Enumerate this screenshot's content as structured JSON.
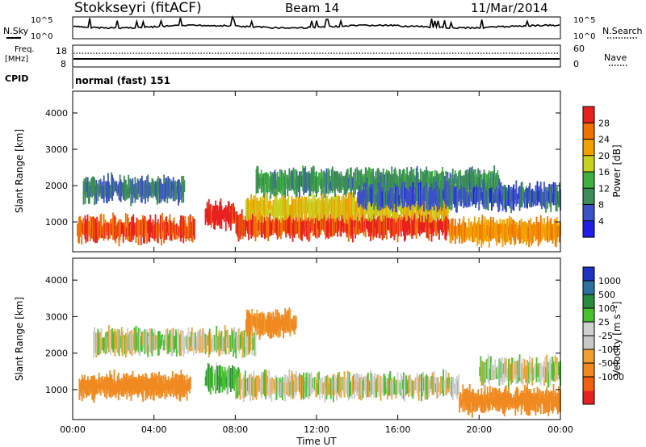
{
  "header": {
    "station": "Stokkseyri (fitACF)",
    "beam": "Beam 14",
    "date": "11/Mar/2014"
  },
  "noise_panel": {
    "left_label": "N.Sky",
    "right_label": "N.Search",
    "ticks_left": [
      "10^5",
      "10^0"
    ],
    "ticks_right": [
      "10^5",
      "10^0"
    ]
  },
  "freq_panel": {
    "left_label_line1": "Freq.",
    "left_label_line2": "[MHz]",
    "right_label": "Nave",
    "ticks_left": [
      "18",
      "8"
    ],
    "ticks_right": [
      "60",
      "0"
    ]
  },
  "cpid_panel": {
    "label": "CPID",
    "mode": "normal (fast) 151"
  },
  "colors": {
    "power_scale": [
      "#1e1ee6",
      "#3c50c8",
      "#3c8c5a",
      "#3fb040",
      "#c8d020",
      "#f0a000",
      "#f07000",
      "#e82020"
    ],
    "velocity_scale": [
      "#e82020",
      "#f06010",
      "#f08a20",
      "#f0a030",
      "#c8c8c8",
      "#d0d0d0",
      "#48c030",
      "#2a8a40",
      "#3070a0",
      "#2030c0"
    ],
    "noise_trace": "#000000"
  },
  "chart_data": [
    {
      "type": "heatmap",
      "title": "",
      "panel": "power",
      "xlabel": "",
      "ylabel": "Slant Range [km]",
      "x_ticks": [
        "00:00",
        "04:00",
        "08:00",
        "12:00",
        "16:00",
        "20:00",
        "00:00"
      ],
      "x_range_hours": [
        0,
        24
      ],
      "ylim": [
        180,
        4600
      ],
      "y_ticks": [
        1000,
        2000,
        3000,
        4000
      ],
      "colorbar": {
        "label": "Power [dB]",
        "ticks": [
          "4",
          "8",
          "12",
          "16",
          "20",
          "24",
          "28"
        ],
        "range": [
          0,
          30
        ]
      },
      "features": [
        {
          "t_start": 0.2,
          "t_end": 6.0,
          "range_center": 800,
          "value": 26
        },
        {
          "t_start": 0.5,
          "t_end": 5.5,
          "range_center": 1900,
          "value": 8
        },
        {
          "t_start": 6.5,
          "t_end": 8.0,
          "range_center": 1200,
          "value": 29
        },
        {
          "t_start": 8.0,
          "t_end": 18.5,
          "range_center": 900,
          "value": 27
        },
        {
          "t_start": 8.5,
          "t_end": 18.5,
          "range_center": 1400,
          "value": 18
        },
        {
          "t_start": 9.0,
          "t_end": 21.0,
          "range_center": 2100,
          "value": 10
        },
        {
          "t_start": 18.5,
          "t_end": 24.0,
          "range_center": 750,
          "value": 22
        },
        {
          "t_start": 14.0,
          "t_end": 24.0,
          "range_center": 1700,
          "value": 6
        }
      ]
    },
    {
      "type": "heatmap",
      "title": "",
      "panel": "velocity",
      "xlabel": "Time UT",
      "ylabel": "Slant Range [km]",
      "x_ticks": [
        "00:00",
        "04:00",
        "08:00",
        "12:00",
        "16:00",
        "20:00",
        "00:00"
      ],
      "x_range_hours": [
        0,
        24
      ],
      "ylim": [
        180,
        4600
      ],
      "y_ticks": [
        1000,
        2000,
        3000,
        4000
      ],
      "colorbar": {
        "label": "Velocity [m s⁻¹]",
        "ticks": [
          "1000",
          "500",
          "100",
          "25",
          "-25",
          "-100",
          "-500",
          "-1000"
        ]
      },
      "features": [
        {
          "t_start": 0.3,
          "t_end": 5.8,
          "range_center": 1100,
          "value": -300
        },
        {
          "t_start": 6.5,
          "t_end": 8.2,
          "range_center": 1300,
          "value": 80
        },
        {
          "t_start": 8.0,
          "t_end": 19.0,
          "range_center": 1100,
          "value": 0
        },
        {
          "t_start": 1.0,
          "t_end": 9.0,
          "range_center": 2300,
          "value": 0
        },
        {
          "t_start": 8.5,
          "t_end": 11.0,
          "range_center": 2800,
          "value": -150
        },
        {
          "t_start": 19.0,
          "t_end": 24.0,
          "range_center": 700,
          "value": -400
        },
        {
          "t_start": 20.0,
          "t_end": 24.0,
          "range_center": 1500,
          "value": 0
        }
      ]
    }
  ]
}
